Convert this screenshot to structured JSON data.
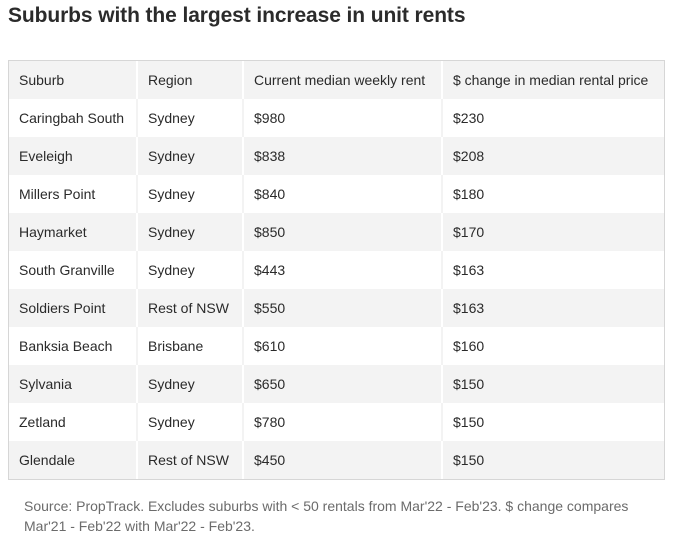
{
  "title": "Suburbs with the largest increase in unit rents",
  "table": {
    "headers": [
      "Suburb",
      "Region",
      "Current median weekly rent",
      "$ change in median rental price"
    ],
    "rows": [
      [
        "Caringbah South",
        "Sydney",
        "$980",
        "$230"
      ],
      [
        "Eveleigh",
        "Sydney",
        "$838",
        "$208"
      ],
      [
        "Millers Point",
        "Sydney",
        "$840",
        "$180"
      ],
      [
        "Haymarket",
        "Sydney",
        "$850",
        "$170"
      ],
      [
        "South Granville",
        "Sydney",
        "$443",
        "$163"
      ],
      [
        "Soldiers Point",
        "Rest of NSW",
        "$550",
        "$163"
      ],
      [
        "Banksia Beach",
        "Brisbane",
        "$610",
        "$160"
      ],
      [
        "Sylvania",
        "Sydney",
        "$650",
        "$150"
      ],
      [
        "Zetland",
        "Sydney",
        "$780",
        "$150"
      ],
      [
        "Glendale",
        "Rest of NSW",
        "$450",
        "$150"
      ]
    ]
  },
  "source_note": "Source: PropTrack. Excludes suburbs with < 50 rentals from Mar'22 - Feb'23. $ change compares Mar'21 - Feb'22 with Mar'22 - Feb'23."
}
